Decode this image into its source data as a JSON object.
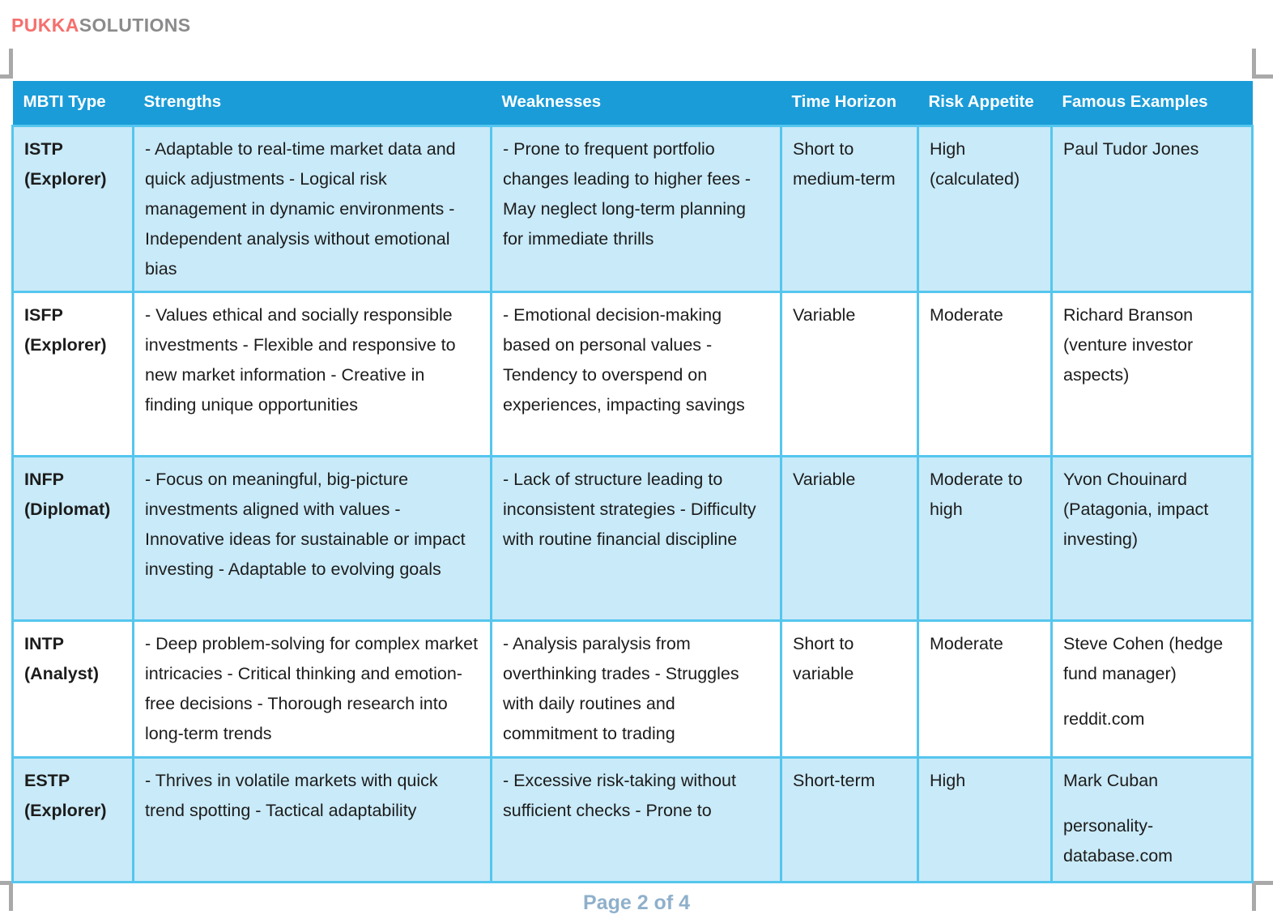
{
  "brand": {
    "primary": "PUKKA",
    "secondary": "SOLUTIONS"
  },
  "footer": {
    "page_label": "Page 2 of 4"
  },
  "colors": {
    "header_bg": "#1A9CD8",
    "row_shaded_bg": "#C9EAF8",
    "table_border": "#55C6EE",
    "brand_primary": "#F5706D",
    "brand_secondary": "#8B8B8D",
    "footer_text": "#8FB0CB",
    "crop_mark": "#A9A9A9",
    "body_text": "#1C1C1C"
  },
  "table": {
    "columns": [
      "MBTI Type",
      "Strengths",
      "Weaknesses",
      "Time Horizon",
      "Risk Appetite",
      "Famous Examples"
    ],
    "rows": [
      {
        "mbti_type": "ISTP (Explorer)",
        "strengths": "- Adaptable to real-time market data and quick adjustments - Logical risk management in dynamic environments - Independent analysis without emotional bias",
        "weaknesses": "- Prone to frequent portfolio changes leading to higher fees - May neglect long-term planning for immediate thrills",
        "time_horizon": "Short to medium-term",
        "risk_appetite": "High (calculated)",
        "famous_examples": [
          "Paul Tudor Jones"
        ],
        "shaded": true
      },
      {
        "mbti_type": "ISFP (Explorer)",
        "strengths": "- Values ethical and socially responsible investments - Flexible and responsive to new market information - Creative in finding unique opportunities",
        "weaknesses": "- Emotional decision-making based on personal values - Tendency to overspend on experiences, impacting savings",
        "time_horizon": "Variable",
        "risk_appetite": "Moderate",
        "famous_examples": [
          "Richard Branson (venture investor aspects)"
        ],
        "shaded": false
      },
      {
        "mbti_type": "INFP (Diplomat)",
        "strengths": "- Focus on meaningful, big-picture investments aligned with values - Innovative ideas for sustainable or impact investing - Adaptable to evolving goals",
        "weaknesses": "- Lack of structure leading to inconsistent strategies - Difficulty with routine financial discipline",
        "time_horizon": "Variable",
        "risk_appetite": "Moderate to high",
        "famous_examples": [
          "Yvon Chouinard (Patagonia, impact investing)"
        ],
        "shaded": true
      },
      {
        "mbti_type": "INTP (Analyst)",
        "strengths": "- Deep problem-solving for complex market intricacies - Critical thinking and emotion-free decisions - Thorough research into long-term trends",
        "weaknesses": "- Analysis paralysis from overthinking trades - Struggles with daily routines and commitment to trading",
        "time_horizon": "Short to variable",
        "risk_appetite": "Moderate",
        "famous_examples": [
          "Steve Cohen (hedge fund manager)",
          "reddit.com"
        ],
        "shaded": false
      },
      {
        "mbti_type": "ESTP (Explorer)",
        "strengths": "- Thrives in volatile markets with quick trend spotting - Tactical adaptability",
        "weaknesses": "- Excessive risk-taking without sufficient checks - Prone to",
        "time_horizon": "Short-term",
        "risk_appetite": "High",
        "famous_examples": [
          "Mark Cuban",
          "personality-database.com"
        ],
        "shaded": true
      }
    ]
  }
}
